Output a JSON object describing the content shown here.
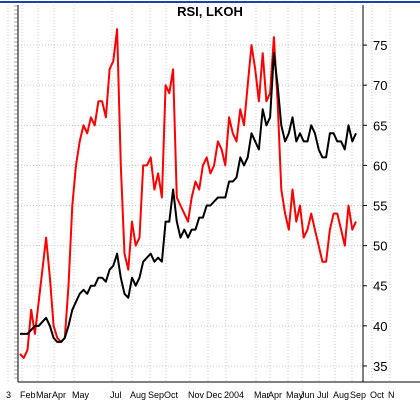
{
  "chart_data": {
    "type": "line",
    "title": "RSI, LKOH",
    "xlabel": "",
    "ylabel": "",
    "ylim": [
      33,
      80
    ],
    "y_ticks": [
      35,
      40,
      45,
      50,
      55,
      60,
      65,
      70,
      75
    ],
    "y_axis_side": "right",
    "x_tick_labels": [
      "3",
      "Feb",
      "Mar",
      "Apr",
      "May",
      "Jul",
      "Aug",
      "Sep",
      "Oct",
      "Nov",
      "Dec",
      "2004",
      "Mar",
      "Apr",
      "May",
      "Jun",
      "Jul",
      "Aug",
      "Sep",
      "Oct",
      "N"
    ],
    "grid": true,
    "legend": "none",
    "colors": {
      "background": "#ffffff",
      "grid": "#c8c8c8",
      "top_border": "#1f3fb0",
      "axis": "#000000"
    },
    "series": [
      {
        "color": "#ff0000",
        "values": [
          36.5,
          36,
          37,
          42,
          39,
          43,
          47,
          51,
          46,
          40,
          38.5,
          38,
          38.5,
          45,
          55,
          60,
          63,
          65,
          64,
          66,
          65,
          68,
          68,
          66,
          72,
          73,
          77,
          60,
          49,
          47,
          53,
          50,
          51,
          60,
          60,
          61,
          57,
          59,
          56,
          70,
          69,
          72,
          56,
          55,
          54,
          53,
          56,
          58,
          57,
          60,
          61,
          59,
          60,
          63,
          62,
          60,
          66,
          64,
          63,
          67,
          65,
          70,
          75,
          72,
          68,
          74,
          68,
          69,
          76,
          68,
          57,
          54,
          52,
          57,
          53,
          55,
          51,
          52,
          54,
          52,
          50,
          48,
          48,
          52,
          54,
          54,
          52,
          50,
          55,
          52,
          53
        ]
      },
      {
        "color": "#000000",
        "values": [
          39,
          39,
          39,
          39.5,
          40,
          40,
          40.5,
          41,
          40,
          38.5,
          38,
          38,
          38.5,
          40,
          42,
          43,
          44,
          44.5,
          44,
          45,
          45,
          46,
          46,
          45.5,
          47,
          47.5,
          49,
          46,
          44,
          43.5,
          46,
          45,
          46,
          48,
          48.5,
          49,
          48,
          48.5,
          48,
          53,
          53,
          57,
          53,
          51,
          52,
          51,
          52,
          52,
          53.5,
          53.5,
          55,
          55,
          55.5,
          56,
          56,
          56,
          58,
          58,
          58.5,
          61,
          60,
          61,
          64,
          63,
          62,
          67,
          65,
          66,
          74,
          70,
          65,
          63,
          64,
          66,
          63,
          64,
          63,
          63,
          65,
          64,
          62,
          61,
          61,
          64,
          64,
          63,
          63,
          62,
          65,
          63,
          64
        ]
      }
    ]
  }
}
